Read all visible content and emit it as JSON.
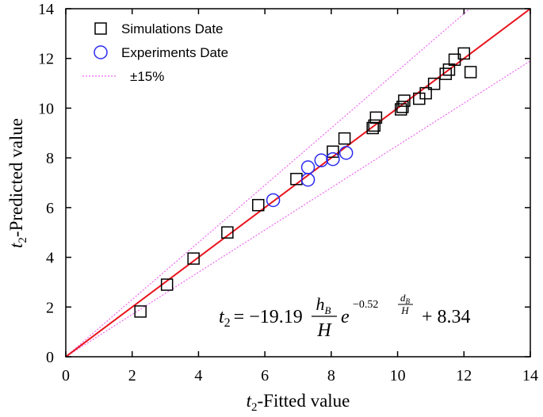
{
  "chart_data": {
    "type": "scatter",
    "xlabel": {
      "main": "t",
      "sub": "2",
      "rest": "-Fitted value"
    },
    "ylabel": {
      "main": "t",
      "sub": "2",
      "rest": "-Predicted value"
    },
    "xlim": [
      0,
      14
    ],
    "ylim": [
      0,
      14
    ],
    "xticks": [
      0,
      2,
      4,
      6,
      8,
      10,
      12,
      14
    ],
    "yticks": [
      0,
      2,
      4,
      6,
      8,
      10,
      12,
      14
    ],
    "grid": false,
    "legend_position": "top-left",
    "legend": {
      "simulations": "Simulations Date",
      "experiments": "Experiments Date",
      "band": "±15%"
    },
    "series": [
      {
        "name": "Simulations Date",
        "marker": "square",
        "color": "#000000",
        "points": [
          [
            2.25,
            1.82
          ],
          [
            3.05,
            2.9
          ],
          [
            3.85,
            3.95
          ],
          [
            4.87,
            5.0
          ],
          [
            5.8,
            6.1
          ],
          [
            6.95,
            7.15
          ],
          [
            8.05,
            8.25
          ],
          [
            8.4,
            8.78
          ],
          [
            9.25,
            9.2
          ],
          [
            9.3,
            9.3
          ],
          [
            9.35,
            9.62
          ],
          [
            10.1,
            9.95
          ],
          [
            10.15,
            10.05
          ],
          [
            10.2,
            10.3
          ],
          [
            10.65,
            10.38
          ],
          [
            10.85,
            10.6
          ],
          [
            11.1,
            10.98
          ],
          [
            11.45,
            11.38
          ],
          [
            11.55,
            11.55
          ],
          [
            11.72,
            11.95
          ],
          [
            12.0,
            12.2
          ],
          [
            12.2,
            11.45
          ]
        ]
      },
      {
        "name": "Experiments Date",
        "marker": "circle",
        "color": "#2a2af0",
        "points": [
          [
            6.25,
            6.3
          ],
          [
            7.3,
            7.62
          ],
          [
            7.3,
            7.12
          ],
          [
            7.7,
            7.9
          ],
          [
            8.05,
            7.95
          ],
          [
            8.45,
            8.2
          ]
        ]
      }
    ],
    "lines": [
      {
        "name": "fit",
        "type": "y=x",
        "color": "#e8141e"
      },
      {
        "name": "±15%",
        "factors": [
          1.15,
          0.85
        ],
        "color": "#ee66ee",
        "style": "dotted"
      }
    ],
    "annotation": {
      "lhs_main": "t",
      "lhs_sub": "2",
      "equals": "= −19.19",
      "frac_num_main": "h",
      "frac_num_sub": "B",
      "frac_den": "H",
      "base": "e",
      "exp_coef": "−0.52",
      "exp_num_main": "d",
      "exp_num_sub": "B",
      "exp_den": "H",
      "tail": "+ 8.34"
    }
  }
}
